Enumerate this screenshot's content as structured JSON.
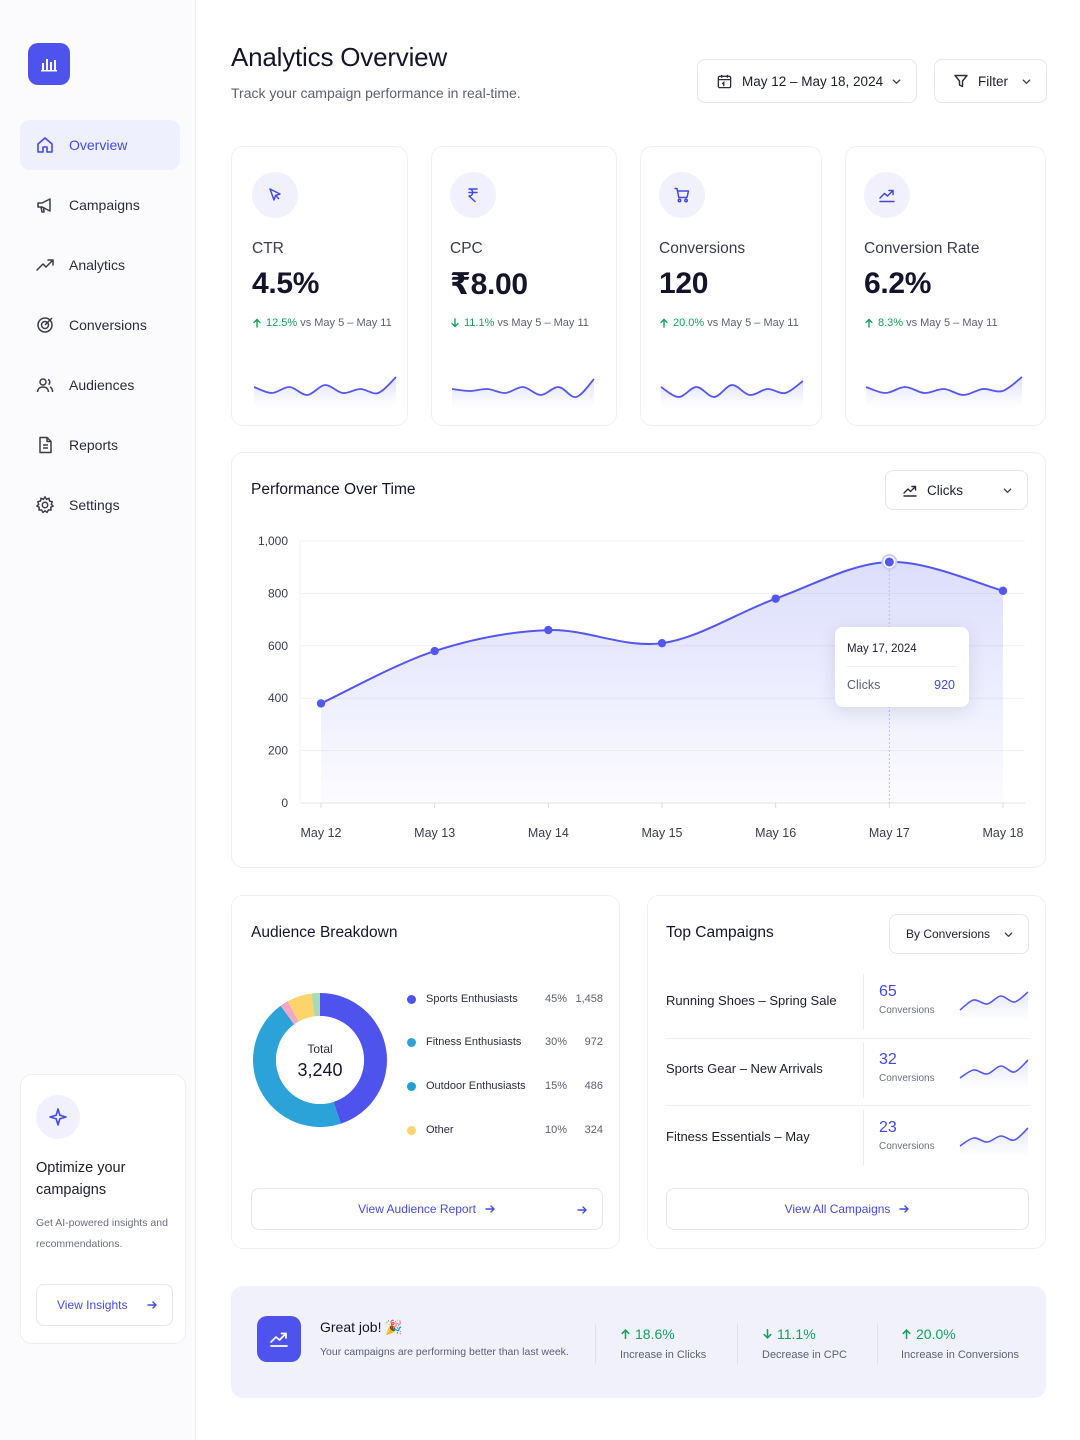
{
  "sidebar": {
    "logo_icon": "bar-chart-icon",
    "items": [
      {
        "label": "Overview",
        "icon": "home-icon",
        "active": true
      },
      {
        "label": "Campaigns",
        "icon": "megaphone-icon"
      },
      {
        "label": "Analytics",
        "icon": "trending-up-icon"
      },
      {
        "label": "Conversions",
        "icon": "target-icon"
      },
      {
        "label": "Audiences",
        "icon": "users-icon"
      },
      {
        "label": "Reports",
        "icon": "document-icon"
      },
      {
        "label": "Settings",
        "icon": "gear-icon"
      }
    ],
    "promo": {
      "icon": "sparkle-icon",
      "title": "Optimize your campaigns",
      "description": "Get AI-powered insights and recommendations.",
      "button": "View Insights"
    }
  },
  "header": {
    "title": "Analytics Overview",
    "subtitle": "Track your campaign performance in real-time.",
    "date_range": "May 12 – May 18, 2024",
    "filter_label": "Filter"
  },
  "kpis": [
    {
      "label": "CTR",
      "value": "4.5%",
      "delta": "12.5%",
      "direction": "up",
      "compare": "vs May 5 – May 11",
      "icon": "cursor-icon",
      "spark": [
        24,
        30,
        24,
        32,
        22,
        30,
        26,
        30,
        14
      ]
    },
    {
      "label": "CPC",
      "value": "₹8.00",
      "delta": "11.1%",
      "direction": "down",
      "compare": "vs May 5 – May 11",
      "icon": "rupee-icon",
      "spark": [
        26,
        28,
        26,
        30,
        24,
        32,
        24,
        34,
        16
      ]
    },
    {
      "label": "Conversions",
      "value": "120",
      "delta": "20.0%",
      "direction": "up",
      "compare": "vs May 5 – May 11",
      "icon": "cart-icon",
      "spark": [
        24,
        34,
        24,
        34,
        22,
        32,
        26,
        30,
        18
      ]
    },
    {
      "label": "Conversion Rate",
      "value": "6.2%",
      "delta": "8.3%",
      "direction": "up",
      "compare": "vs May 5 – May 11",
      "icon": "trend-icon",
      "spark": [
        24,
        30,
        24,
        30,
        26,
        32,
        26,
        28,
        14
      ]
    }
  ],
  "performance": {
    "title": "Performance Over Time",
    "metric_label": "Clicks",
    "tooltip": {
      "date": "May 17, 2024",
      "label": "Clicks",
      "value": "920"
    }
  },
  "chart_data": {
    "type": "area",
    "title": "Performance Over Time",
    "xlabel": "",
    "ylabel": "",
    "categories": [
      "May 12",
      "May 13",
      "May 14",
      "May 15",
      "May 16",
      "May 17",
      "May 18"
    ],
    "series": [
      {
        "name": "Clicks",
        "values": [
          380,
          580,
          660,
          610,
          780,
          920,
          810
        ]
      }
    ],
    "ylim": [
      0,
      1000
    ],
    "yticks": [
      "0",
      "200",
      "400",
      "600",
      "800",
      "1,000"
    ],
    "grid": true,
    "color": "#4f53ee"
  },
  "audience": {
    "title": "Audience Breakdown",
    "total_label": "Total",
    "total_value": "3,240",
    "segments": [
      {
        "name": "Sports Enthusiasts",
        "pct": "45%",
        "count": "1,458",
        "color": "#4f53ee",
        "share": 45
      },
      {
        "name": "Fitness Enthusiasts",
        "pct": "30%",
        "count": "972",
        "color": "#2ba3d9",
        "share": 30
      },
      {
        "name": "Outdoor Enthusiasts",
        "pct": "15%",
        "count": "486",
        "color": "#1fa0d0",
        "share": 15
      },
      {
        "name": "Other",
        "pct": "10%",
        "count": "324",
        "color": "#fcd46b",
        "share": 10
      }
    ],
    "button": "View Audience Report"
  },
  "campaigns": {
    "title": "Top Campaigns",
    "sort_label": "By Conversions",
    "rows": [
      {
        "name": "Running Shoes – Spring Sale",
        "value": "65",
        "unit": "Conversions",
        "spark": [
          22,
          12,
          16,
          8,
          14,
          4
        ]
      },
      {
        "name": "Sports Gear – New Arrivals",
        "value": "32",
        "unit": "Conversions",
        "spark": [
          22,
          14,
          18,
          10,
          16,
          4
        ]
      },
      {
        "name": "Fitness Essentials – May",
        "value": "23",
        "unit": "Conversions",
        "spark": [
          22,
          14,
          18,
          12,
          16,
          4
        ]
      }
    ],
    "button": "View All Campaigns"
  },
  "banner": {
    "title": "Great job! 🎉",
    "subtitle": "Your campaigns are performing better than last week.",
    "stats": [
      {
        "value": "18.6%",
        "label": "Increase in Clicks",
        "direction": "up"
      },
      {
        "value": "11.1%",
        "label": "Decrease in CPC",
        "direction": "down"
      },
      {
        "value": "20.0%",
        "label": "Increase in Conversions",
        "direction": "up"
      }
    ]
  }
}
